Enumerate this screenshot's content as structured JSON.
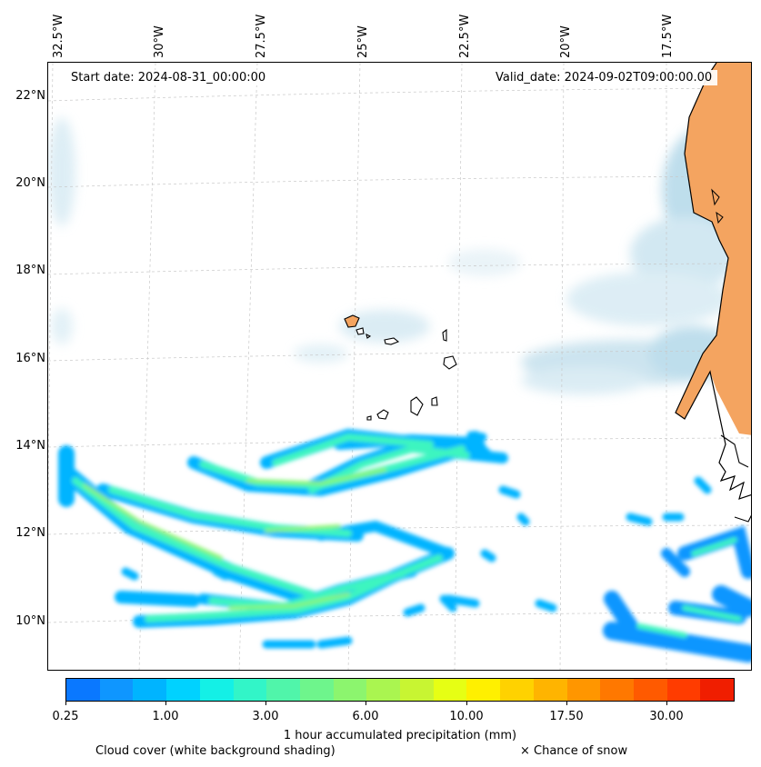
{
  "map": {
    "longitude_labels": [
      "32.5°W",
      "30°W",
      "27.5°W",
      "25°W",
      "22.5°W",
      "20°W",
      "17.5°W"
    ],
    "latitude_labels": [
      "22°N",
      "20°N",
      "18°N",
      "16°N",
      "14°N",
      "12°N",
      "10°N"
    ],
    "start_date": "Start date: 2024-08-31_00:00:00",
    "valid_date": "Valid_date: 2024-09-02T09:00:00.00",
    "land_color": "#f4a460",
    "coastline_color": "#000000",
    "cloud_color": "#b9dbe9",
    "gridlines": true
  },
  "colorbar": {
    "colors": [
      "#0a78ff",
      "#0f96ff",
      "#00b4ff",
      "#00d2ff",
      "#14f0e6",
      "#32f5c8",
      "#50f5aa",
      "#6ef58c",
      "#8cf56e",
      "#aaf550",
      "#c8f532",
      "#e6ff14",
      "#fff000",
      "#ffd200",
      "#ffb400",
      "#ff9600",
      "#ff7800",
      "#ff5a00",
      "#ff3c00",
      "#f01e00"
    ],
    "tick_labels": [
      "0.25",
      "1.00",
      "3.00",
      "6.00",
      "10.00",
      "17.50",
      "30.00"
    ],
    "title": "1 hour accumulated precipitation (mm)"
  },
  "footer": {
    "cloud_cover": "Cloud cover (white background shading)",
    "snow": "× Chance of snow"
  }
}
